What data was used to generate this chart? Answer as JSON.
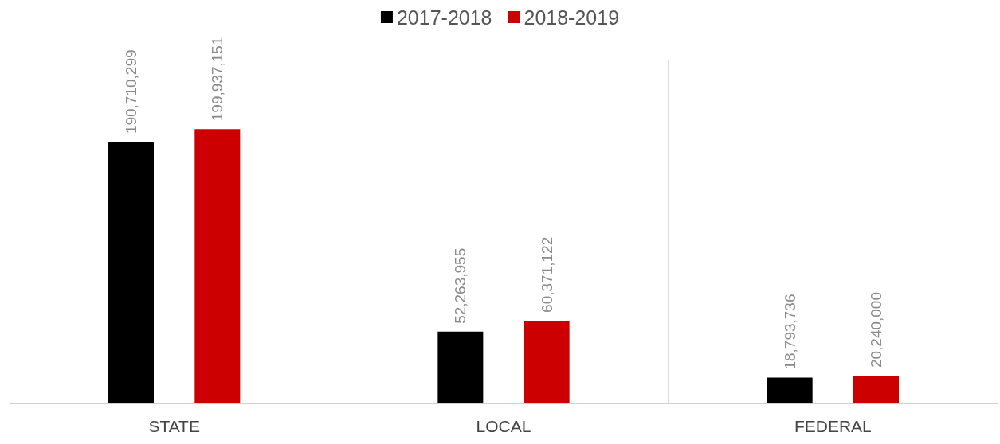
{
  "chart_data": {
    "type": "bar",
    "categories": [
      "STATE",
      "LOCAL",
      "FEDERAL"
    ],
    "series": [
      {
        "name": "2017-2018",
        "color": "#000000",
        "values": [
          190710299,
          52263955,
          18793736
        ],
        "value_labels": [
          "190,710,299",
          "52,263,955",
          "18,793,736"
        ]
      },
      {
        "name": "2018-2019",
        "color": "#cc0000",
        "values": [
          199937151,
          60371122,
          20240000
        ],
        "value_labels": [
          "199,937,151",
          "60,371,122",
          "20,240,000"
        ]
      }
    ],
    "legend": "top",
    "grid": "x"
  }
}
